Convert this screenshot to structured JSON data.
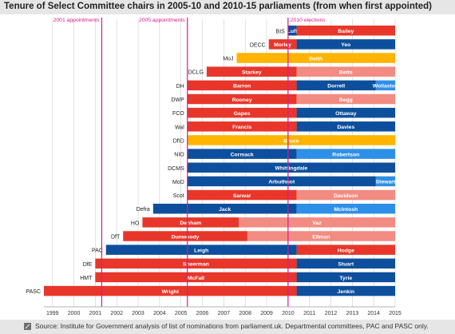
{
  "title": "Tenure of Select Committee chairs in 2005-10 and 2010-15 parliaments (from when first appointed)",
  "footer": "Source: Institute for Government analysis of list of nominations from parliament.uk. Departmental committees, PAC and PASC only.",
  "colors": {
    "red": "#e8362a",
    "light_red": "#f28b82",
    "blue": "#0d4f9c",
    "light_blue": "#2e8fe6",
    "yellow": "#ffb400",
    "magenta": "#d81b8c",
    "grid": "#cfcfcf",
    "background": "#ffffff",
    "panel": "#e6e6e6"
  },
  "chart_data": {
    "type": "gantt",
    "x_axis": {
      "range": [
        1998.6,
        2015
      ],
      "ticks": [
        "1999",
        "2000",
        "2001",
        "2002",
        "2003",
        "2004",
        "2005",
        "2006",
        "2007",
        "2008",
        "2009",
        "2010",
        "2011",
        "2012",
        "2013",
        "2014",
        "2015"
      ],
      "grid": true
    },
    "events": [
      {
        "label": "2001 appointments",
        "x": 2001.3,
        "label_side": "left"
      },
      {
        "label": "2005 appointments",
        "x": 2005.3,
        "label_side": "left"
      },
      {
        "label": "2010 elections",
        "x": 2010.0,
        "label_side": "right"
      }
    ],
    "rows": [
      {
        "committee": "BIS",
        "segments": [
          {
            "start": 2010.0,
            "end": 2010.4,
            "color": "blue",
            "label": "Luff"
          },
          {
            "start": 2010.4,
            "end": 2015.0,
            "color": "red",
            "label": "Bailey"
          }
        ]
      },
      {
        "committee": "DECC",
        "segments": [
          {
            "start": 2009.1,
            "end": 2010.4,
            "color": "red",
            "label": "Morley"
          },
          {
            "start": 2010.4,
            "end": 2015.0,
            "color": "blue",
            "label": "Yeo"
          }
        ]
      },
      {
        "committee": "MoJ",
        "segments": [
          {
            "start": 2007.6,
            "end": 2015.0,
            "color": "yellow",
            "label": "Beith"
          }
        ]
      },
      {
        "committee": "DCLG",
        "segments": [
          {
            "start": 2006.2,
            "end": 2010.4,
            "color": "red",
            "label": "Starkey"
          },
          {
            "start": 2010.4,
            "end": 2015.0,
            "color": "light_red",
            "label": "Betts"
          }
        ]
      },
      {
        "committee": "DH",
        "segments": [
          {
            "start": 2005.3,
            "end": 2010.4,
            "color": "red",
            "label": "Barron"
          },
          {
            "start": 2010.4,
            "end": 2014.1,
            "color": "blue",
            "label": "Dorrell"
          },
          {
            "start": 2014.1,
            "end": 2015.0,
            "color": "light_blue",
            "label": "Wollaston"
          }
        ]
      },
      {
        "committee": "DWP",
        "segments": [
          {
            "start": 2005.3,
            "end": 2010.4,
            "color": "red",
            "label": "Rooney"
          },
          {
            "start": 2010.4,
            "end": 2015.0,
            "color": "light_red",
            "label": "Begg"
          }
        ]
      },
      {
        "committee": "FCO",
        "segments": [
          {
            "start": 2005.3,
            "end": 2010.4,
            "color": "red",
            "label": "Gapes"
          },
          {
            "start": 2010.4,
            "end": 2015.0,
            "color": "blue",
            "label": "Ottaway"
          }
        ]
      },
      {
        "committee": "Wal",
        "segments": [
          {
            "start": 2005.3,
            "end": 2010.4,
            "color": "red",
            "label": "Francis"
          },
          {
            "start": 2010.4,
            "end": 2015.0,
            "color": "blue",
            "label": "Davies"
          }
        ]
      },
      {
        "committee": "DfID",
        "segments": [
          {
            "start": 2005.3,
            "end": 2015.0,
            "color": "yellow",
            "label": "Bruce"
          }
        ]
      },
      {
        "committee": "NIO",
        "segments": [
          {
            "start": 2005.3,
            "end": 2010.4,
            "color": "blue",
            "label": "Cormack"
          },
          {
            "start": 2010.4,
            "end": 2015.0,
            "color": "light_blue",
            "label": "Robertson"
          }
        ]
      },
      {
        "committee": "DCMS",
        "segments": [
          {
            "start": 2005.3,
            "end": 2015.0,
            "color": "blue",
            "label": "Whittingdale"
          }
        ]
      },
      {
        "committee": "MoD",
        "segments": [
          {
            "start": 2005.3,
            "end": 2014.1,
            "color": "blue",
            "label": "Arbuthnot"
          },
          {
            "start": 2014.1,
            "end": 2015.0,
            "color": "light_blue",
            "label": "Stewart"
          }
        ]
      },
      {
        "committee": "Scot",
        "segments": [
          {
            "start": 2005.3,
            "end": 2010.4,
            "color": "red",
            "label": "Sarwar"
          },
          {
            "start": 2010.4,
            "end": 2015.0,
            "color": "light_red",
            "label": "Davidson"
          }
        ]
      },
      {
        "committee": "Defra",
        "segments": [
          {
            "start": 2003.7,
            "end": 2010.4,
            "color": "blue",
            "label": "Jack"
          },
          {
            "start": 2010.4,
            "end": 2015.0,
            "color": "light_blue",
            "label": "McIntosh"
          }
        ]
      },
      {
        "committee": "HO",
        "segments": [
          {
            "start": 2003.2,
            "end": 2007.7,
            "color": "red",
            "label": "Denham"
          },
          {
            "start": 2007.7,
            "end": 2015.0,
            "color": "light_red",
            "label": "Vaz"
          }
        ]
      },
      {
        "committee": "DfT",
        "segments": [
          {
            "start": 2002.3,
            "end": 2008.1,
            "color": "red",
            "label": "Dunwoody"
          },
          {
            "start": 2008.1,
            "end": 2015.0,
            "color": "light_red",
            "label": "Ellman"
          }
        ]
      },
      {
        "committee": "PAC",
        "segments": [
          {
            "start": 2001.5,
            "end": 2010.4,
            "color": "blue",
            "label": "Leigh"
          },
          {
            "start": 2010.4,
            "end": 2015.0,
            "color": "red",
            "label": "Hodge"
          }
        ]
      },
      {
        "committee": "DfE",
        "segments": [
          {
            "start": 2001.0,
            "end": 2010.4,
            "color": "red",
            "label": "Sheerman"
          },
          {
            "start": 2010.4,
            "end": 2015.0,
            "color": "blue",
            "label": "Stuart"
          }
        ]
      },
      {
        "committee": "HMT",
        "segments": [
          {
            "start": 2001.0,
            "end": 2010.4,
            "color": "red",
            "label": "McFall"
          },
          {
            "start": 2010.4,
            "end": 2015.0,
            "color": "blue",
            "label": "Tyrie"
          }
        ]
      },
      {
        "committee": "PASC",
        "segments": [
          {
            "start": 1998.6,
            "end": 2010.4,
            "color": "red",
            "label": "Wright"
          },
          {
            "start": 2010.4,
            "end": 2015.0,
            "color": "blue",
            "label": "Jenkin"
          }
        ]
      }
    ]
  }
}
